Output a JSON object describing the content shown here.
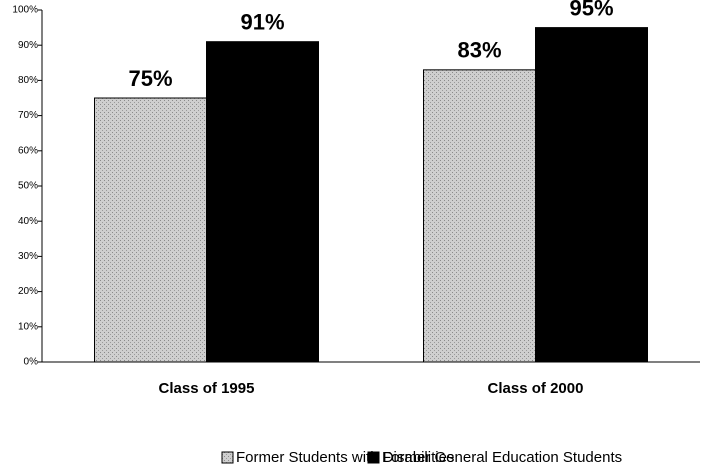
{
  "chart_data": {
    "type": "bar",
    "categories": [
      "Class of 1995",
      "Class of 2000"
    ],
    "series": [
      {
        "name": "Former Students with Disabilities",
        "color": "#c6c6c6",
        "values": [
          75,
          83
        ],
        "value_labels": [
          "75%",
          "83%"
        ]
      },
      {
        "name": "Former General Education Students",
        "color": "#000000",
        "values": [
          91,
          95
        ],
        "value_labels": [
          "91%",
          "95%"
        ]
      }
    ],
    "ylim": [
      0,
      100
    ],
    "yticks": [
      {
        "value": 0,
        "label": "0%"
      },
      {
        "value": 10,
        "label": "10%"
      },
      {
        "value": 20,
        "label": "20%"
      },
      {
        "value": 30,
        "label": "30%"
      },
      {
        "value": 40,
        "label": "40%"
      },
      {
        "value": 50,
        "label": "50%"
      },
      {
        "value": 60,
        "label": "60%"
      },
      {
        "value": 70,
        "label": "70%"
      },
      {
        "value": 80,
        "label": "80%"
      },
      {
        "value": 90,
        "label": "90%"
      },
      {
        "value": 100,
        "label": "100%"
      }
    ],
    "grid": false,
    "legend": "bottom"
  }
}
